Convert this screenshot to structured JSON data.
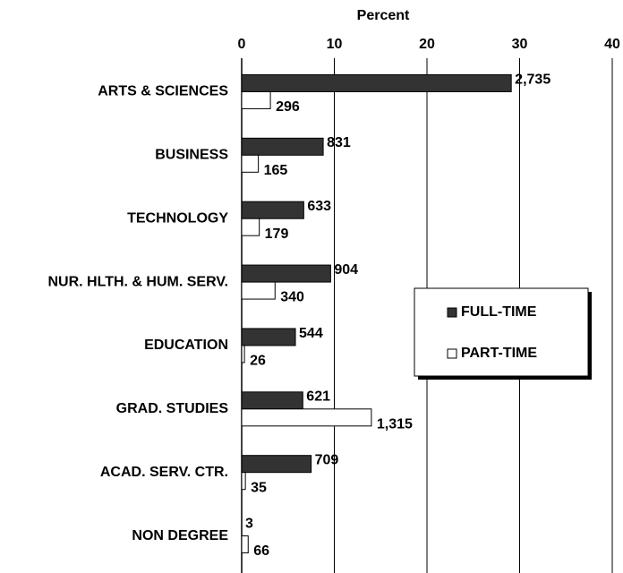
{
  "chart_data": {
    "type": "hbar",
    "x_label": "Percent",
    "categories": [
      "ARTS & SCIENCES",
      "BUSINESS",
      "TECHNOLOGY",
      "NUR. HLTH. & HUM. SERV.",
      "EDUCATION",
      "GRAD. STUDIES",
      "ACAD. SERV. CTR.",
      "NON DEGREE"
    ],
    "series": [
      {
        "name": "FULL-TIME",
        "color": "#333333",
        "values": [
          29.1,
          8.8,
          6.7,
          9.6,
          5.8,
          6.6,
          7.5,
          0.0
        ],
        "value_labels": [
          "2,735",
          "831",
          "633",
          "904",
          "544",
          "621",
          "709",
          "3"
        ]
      },
      {
        "name": "PART-TIME",
        "color": "#ffffff",
        "values": [
          3.1,
          1.8,
          1.9,
          3.6,
          0.3,
          14.0,
          0.4,
          0.7
        ],
        "value_labels": [
          "296",
          "165",
          "179",
          "340",
          "26",
          "1,315",
          "35",
          "66"
        ]
      }
    ],
    "xlim": [
      0,
      40
    ],
    "xticks": [
      0,
      10,
      20,
      30,
      40
    ],
    "grid": true,
    "legend": "right"
  }
}
